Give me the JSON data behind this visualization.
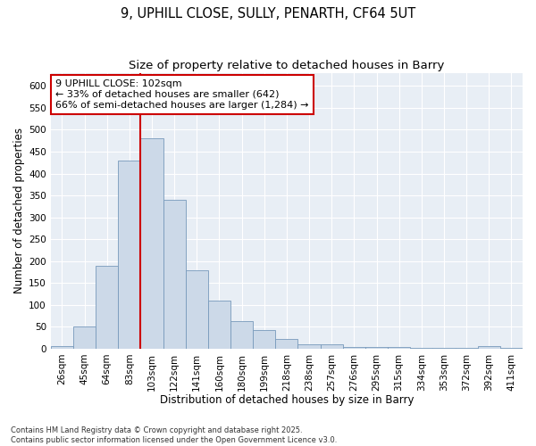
{
  "title1": "9, UPHILL CLOSE, SULLY, PENARTH, CF64 5UT",
  "title2": "Size of property relative to detached houses in Barry",
  "xlabel": "Distribution of detached houses by size in Barry",
  "ylabel": "Number of detached properties",
  "categories": [
    "26sqm",
    "45sqm",
    "64sqm",
    "83sqm",
    "103sqm",
    "122sqm",
    "141sqm",
    "160sqm",
    "180sqm",
    "199sqm",
    "218sqm",
    "238sqm",
    "257sqm",
    "276sqm",
    "295sqm",
    "315sqm",
    "334sqm",
    "353sqm",
    "372sqm",
    "392sqm",
    "411sqm"
  ],
  "values": [
    5,
    50,
    190,
    430,
    480,
    340,
    178,
    110,
    62,
    43,
    23,
    10,
    10,
    3,
    3,
    3,
    2,
    2,
    2,
    5,
    2
  ],
  "bar_color": "#ccd9e8",
  "bar_edge_color": "#7799bb",
  "vline_index": 4,
  "vline_color": "#cc0000",
  "annotation_text": "9 UPHILL CLOSE: 102sqm\n← 33% of detached houses are smaller (642)\n66% of semi-detached houses are larger (1,284) →",
  "annotation_box_facecolor": "#ffffff",
  "annotation_box_edgecolor": "#cc0000",
  "ylim": [
    0,
    630
  ],
  "yticks": [
    0,
    50,
    100,
    150,
    200,
    250,
    300,
    350,
    400,
    450,
    500,
    550,
    600
  ],
  "background_color": "#e8eef5",
  "grid_color": "#ffffff",
  "footnote": "Contains HM Land Registry data © Crown copyright and database right 2025.\nContains public sector information licensed under the Open Government Licence v3.0.",
  "title1_fontsize": 10.5,
  "title2_fontsize": 9.5,
  "xlabel_fontsize": 8.5,
  "ylabel_fontsize": 8.5,
  "tick_fontsize": 7.5,
  "annot_fontsize": 8,
  "footnote_fontsize": 6
}
